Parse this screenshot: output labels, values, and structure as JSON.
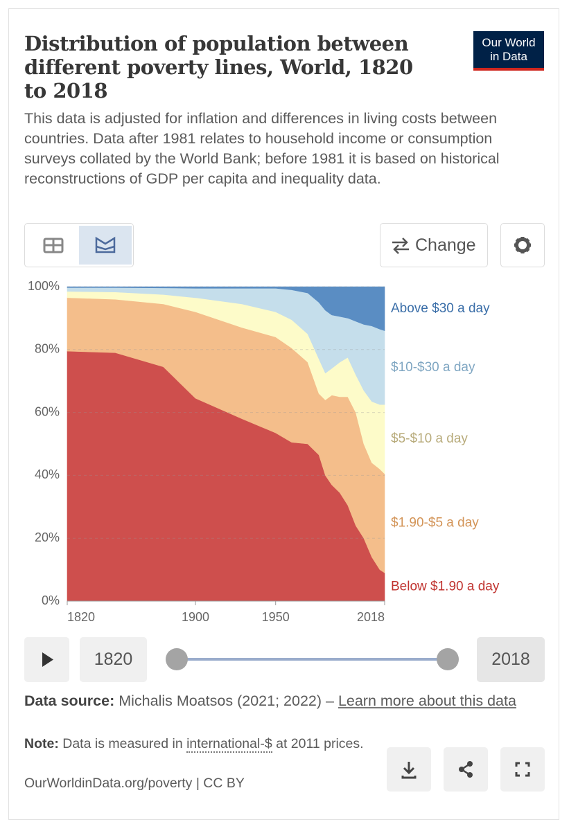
{
  "header": {
    "title": "Distribution of population between different poverty lines, World, 1820 to 2018",
    "subtitle": "This data is adjusted for inflation and differences in living costs between countries. Data after 1981 relates to household income or consumption surveys collated by the World Bank; before 1981 it is based on historical reconstructions of GDP per capita and inequality data.",
    "logo": [
      "Our World",
      "in Data"
    ]
  },
  "controls": {
    "change": "Change",
    "start_year": "1820",
    "end_year": "2018"
  },
  "footer": {
    "source_label": "Data source:",
    "source": "Michalis Moatsos (2021; 2022) –",
    "source_link": "Learn more about this data",
    "note_label": "Note:",
    "note_before": "Data is measured in",
    "note_link": "international-$",
    "note_after": "at 2011 prices.",
    "credit": "OurWorldinData.org/poverty | CC BY"
  },
  "chart_data": {
    "type": "stacked_area",
    "x": [
      1820,
      1850,
      1880,
      1900,
      1929,
      1950,
      1960,
      1970,
      1977,
      1981,
      1985,
      1990,
      1995,
      2000,
      2005,
      2010,
      2015,
      2018
    ],
    "xlim": [
      1820,
      2018
    ],
    "xticks": [
      1820,
      1900,
      1950,
      2018
    ],
    "ylim": [
      0,
      100
    ],
    "yticks": [
      {
        "value": 0,
        "label": "0%"
      },
      {
        "value": 20,
        "label": "20%"
      },
      {
        "value": 40,
        "label": "40%"
      },
      {
        "value": 60,
        "label": "60%"
      },
      {
        "value": 80,
        "label": "80%"
      },
      {
        "value": 100,
        "label": "100%"
      }
    ],
    "grid": true,
    "series": [
      {
        "name": "Below $1.90 a day",
        "color": "#ce4f4d",
        "label_color": "#c0332f",
        "values": [
          79.5,
          79,
          74.5,
          64.5,
          58,
          53.5,
          50.5,
          50,
          46.5,
          40,
          37,
          34.5,
          30.5,
          24,
          20,
          14,
          10,
          9
        ]
      },
      {
        "name": "$1.90-$5 a day",
        "color": "#f4be8b",
        "label_color": "#d39457",
        "values": [
          17,
          17,
          20,
          27.5,
          29,
          30.5,
          30,
          26,
          19.5,
          24,
          28.5,
          30.5,
          34.5,
          36,
          30,
          30,
          32,
          31.5
        ]
      },
      {
        "name": "$5-$10 a day",
        "color": "#fdfbc9",
        "label_color": "#b8ab7b",
        "values": [
          2,
          2.3,
          3,
          4.5,
          7.5,
          8,
          9,
          9,
          11,
          8.5,
          8.5,
          11,
          12.5,
          12,
          17,
          19.5,
          20.5,
          22
        ]
      },
      {
        "name": "$10-$30 a day",
        "color": "#c5deeb",
        "label_color": "#7fa6c2",
        "values": [
          1.2,
          1.4,
          2.1,
          3,
          5,
          7.5,
          9.5,
          13,
          18,
          20,
          17,
          14.5,
          12.5,
          17,
          21,
          24,
          24,
          23.5
        ]
      },
      {
        "name": "Above $30 a day",
        "color": "#5a8dc3",
        "label_color": "#3a6ea8",
        "values": [
          0.3,
          0.3,
          0.4,
          0.5,
          0.5,
          0.5,
          1,
          2,
          5,
          7.5,
          9,
          9.5,
          10,
          11,
          12,
          12.5,
          13.5,
          14
        ]
      }
    ]
  }
}
